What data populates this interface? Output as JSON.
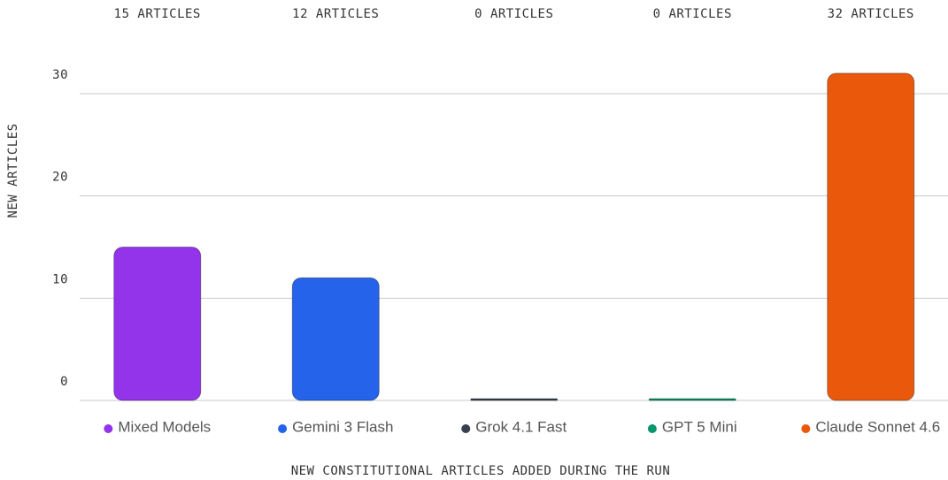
{
  "chart_data": {
    "type": "bar",
    "title": "NEW CONSTITUTIONAL ARTICLES ADDED DURING THE RUN",
    "y_label": "NEW ARTICLES",
    "categories": [
      "Mixed Models",
      "Gemini 3 Flash",
      "Grok 4.1 Fast",
      "GPT 5 Mini",
      "Claude Sonnet 4.6"
    ],
    "values": [
      15,
      12,
      0,
      0,
      32
    ],
    "value_labels": [
      "15 ARTICLES",
      "12 ARTICLES",
      "0 ARTICLES",
      "0 ARTICLES",
      "32 ARTICLES"
    ],
    "colors": [
      "#9333ea",
      "#2563eb",
      "#374151",
      "#059669",
      "#ea580c"
    ],
    "ylim": [
      0,
      30
    ],
    "yticks": [
      0,
      10,
      20,
      30
    ],
    "grid": true
  }
}
